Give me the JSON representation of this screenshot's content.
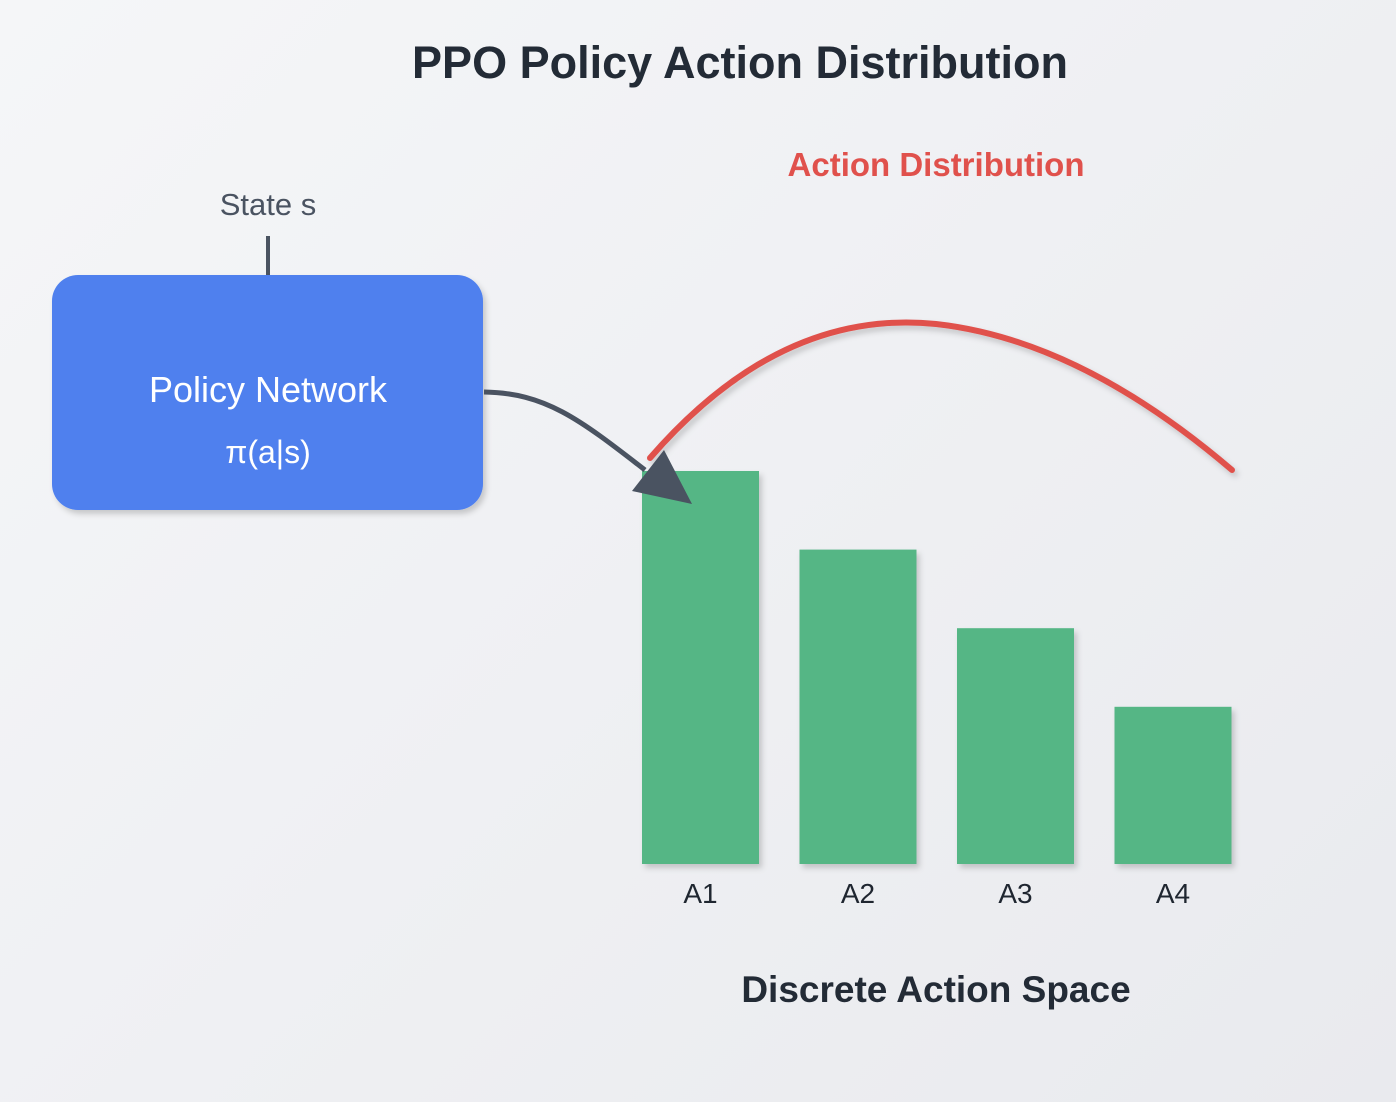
{
  "title": "PPO Policy Action Distribution",
  "state_label": "State s",
  "policy_box": {
    "label": "Policy Network",
    "formula": "π(a|s)",
    "color": "#4f80ee"
  },
  "distribution_label": "Action Distribution",
  "colors": {
    "bar": "#55b685",
    "curve": "#e0514c",
    "arrow": "#4a5361"
  },
  "chart_data": {
    "type": "bar",
    "categories": [
      "A1",
      "A2",
      "A3",
      "A4"
    ],
    "values": [
      0.5,
      0.4,
      0.3,
      0.2
    ],
    "xlabel": "Discrete Action Space",
    "ylabel": ""
  }
}
